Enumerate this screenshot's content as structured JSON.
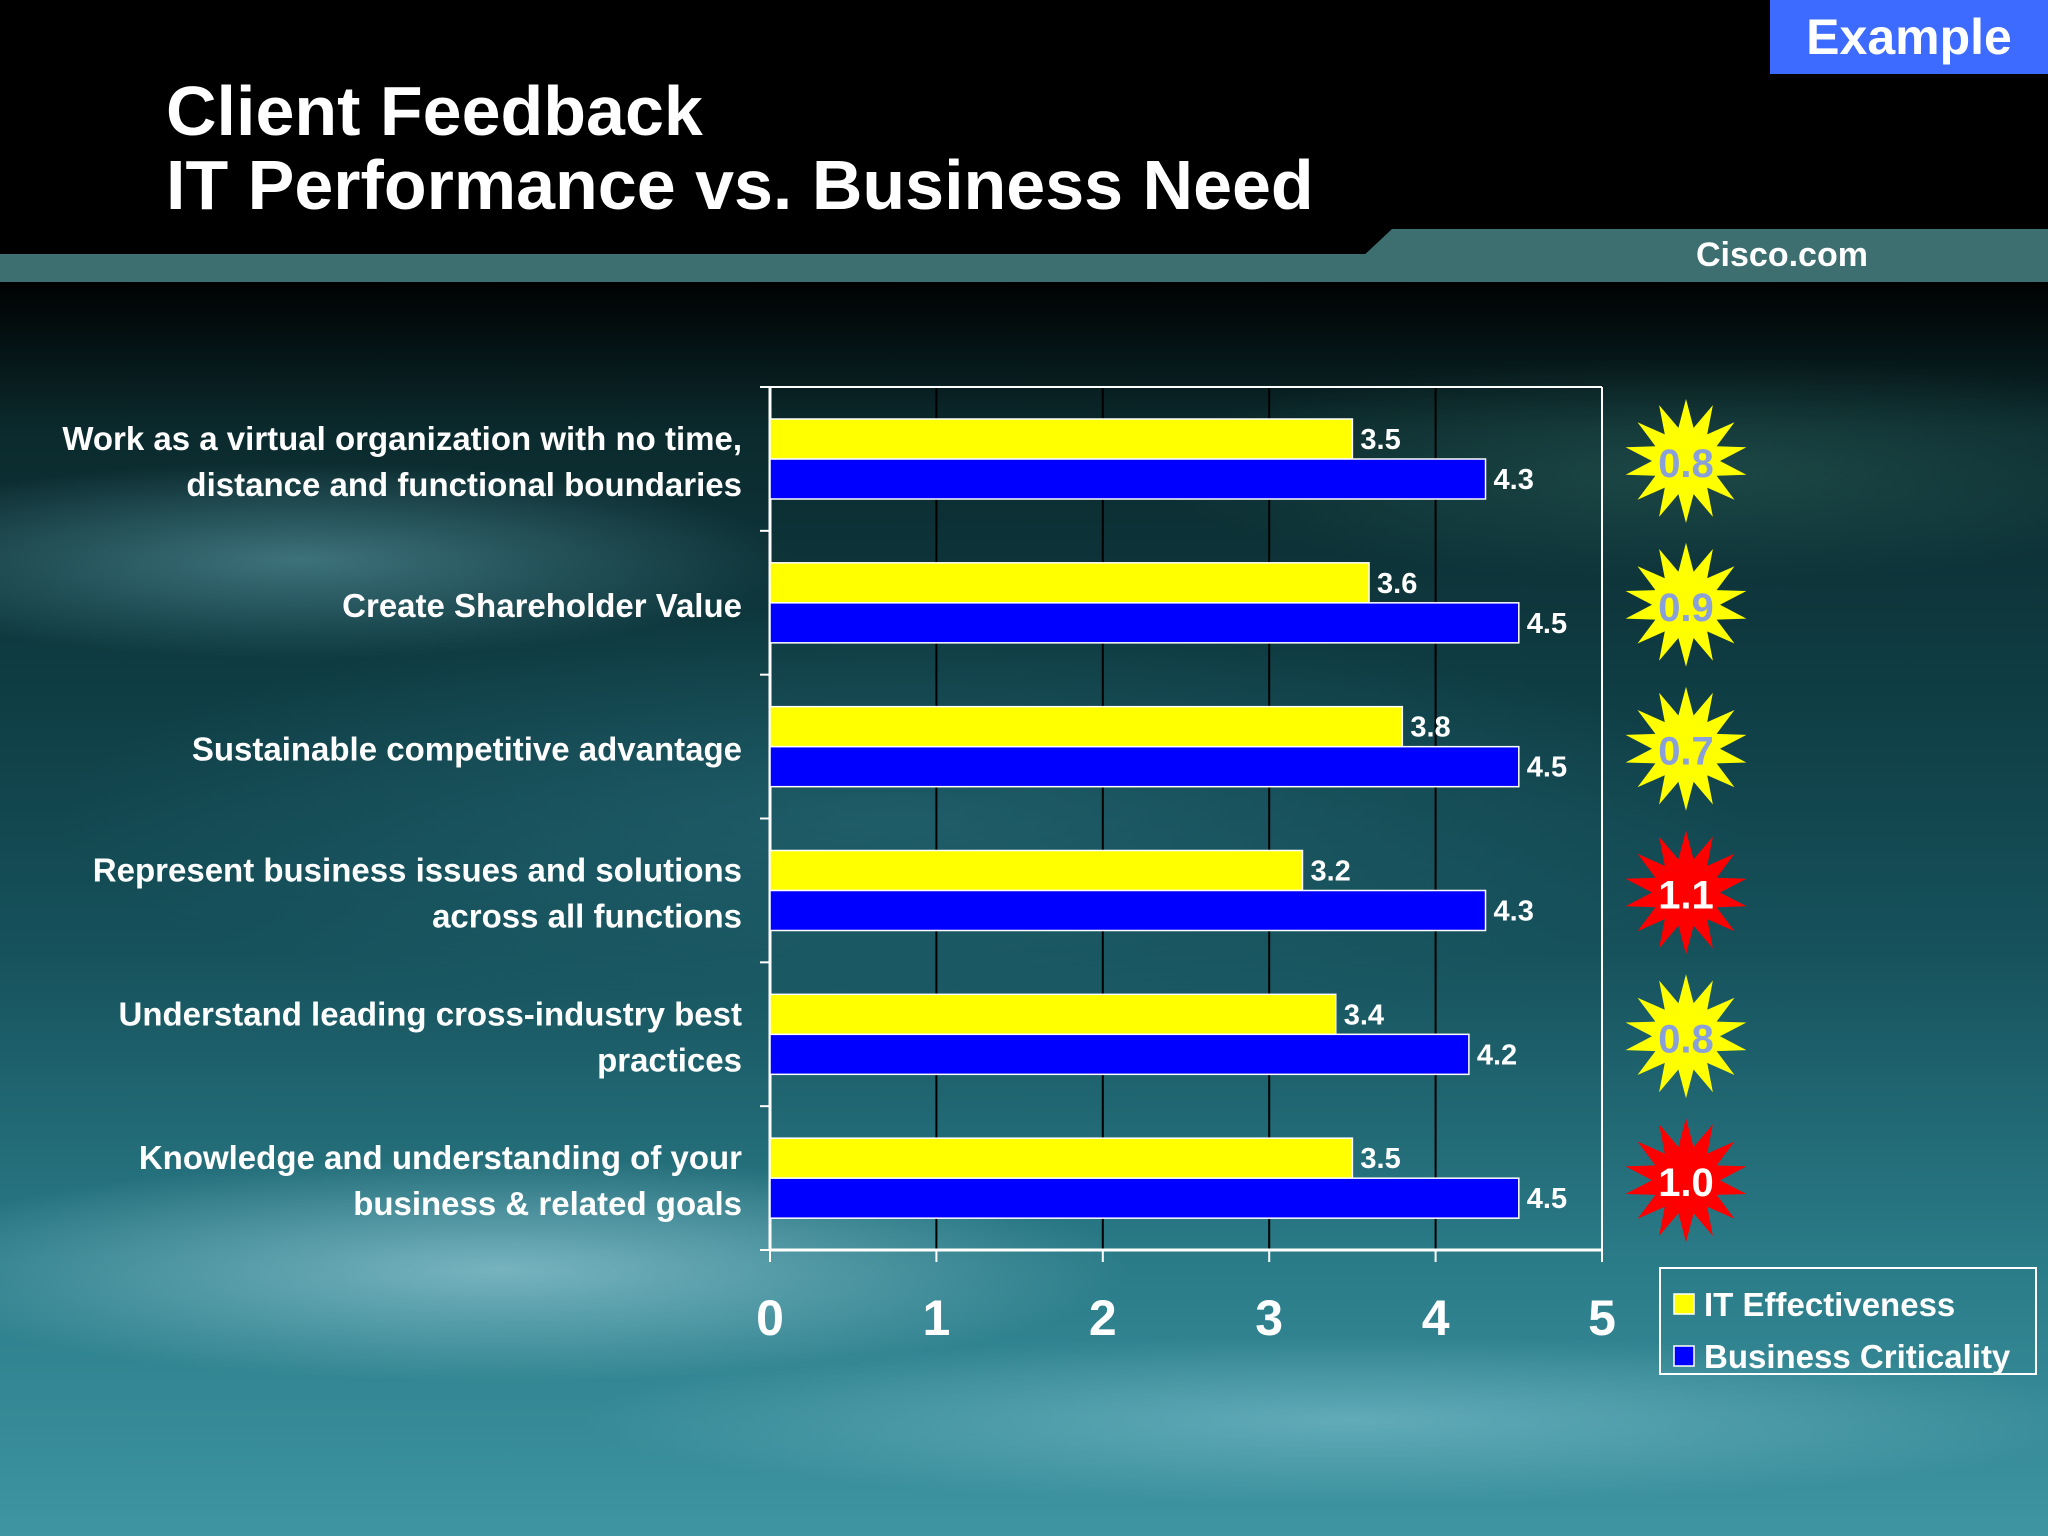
{
  "header": {
    "title_line1": "Client Feedback",
    "title_line2": "IT Performance vs. Business Need",
    "brand": "Cisco.com",
    "badge": "Example"
  },
  "colors": {
    "it_effectiveness": "#ffff00",
    "business_criticality": "#0000ff",
    "gap_moderate": "#ffff00",
    "gap_high": "#ff0000",
    "gap_text_moderate": "#8aa0d8",
    "gap_text_high": "#ffffff"
  },
  "chart_data": {
    "type": "bar",
    "orientation": "horizontal",
    "categories": [
      [
        "Work as a virtual organization with no time,",
        "distance and functional boundaries"
      ],
      [
        "Create Shareholder Value"
      ],
      [
        "Sustainable competitive advantage"
      ],
      [
        "Represent business issues and solutions",
        "across all functions"
      ],
      [
        "Understand leading cross-industry best",
        "practices"
      ],
      [
        "Knowledge and understanding of your",
        "business & related goals"
      ]
    ],
    "series": [
      {
        "name": "IT Effectiveness",
        "values": [
          3.5,
          3.6,
          3.8,
          3.2,
          3.4,
          3.5
        ],
        "labels": [
          "3.5",
          "3.6",
          "3.8",
          "3.2",
          "3.4",
          "3.5"
        ]
      },
      {
        "name": "Business Criticality",
        "values": [
          4.3,
          4.5,
          4.5,
          4.3,
          4.2,
          4.5
        ],
        "labels": [
          "4.3",
          "4.5",
          "4.5",
          "4.3",
          "4.2",
          "4.5"
        ]
      }
    ],
    "gaps": [
      {
        "label": "0.8",
        "level": "moderate"
      },
      {
        "label": "0.9",
        "level": "moderate"
      },
      {
        "label": "0.7",
        "level": "moderate"
      },
      {
        "label": "1.1",
        "level": "high"
      },
      {
        "label": "0.8",
        "level": "moderate"
      },
      {
        "label": "1.0",
        "level": "high"
      }
    ],
    "xlim": [
      0,
      5
    ],
    "xticks": [
      "0",
      "1",
      "2",
      "3",
      "4",
      "5"
    ],
    "grid": true,
    "legend_position": "bottom-right"
  }
}
